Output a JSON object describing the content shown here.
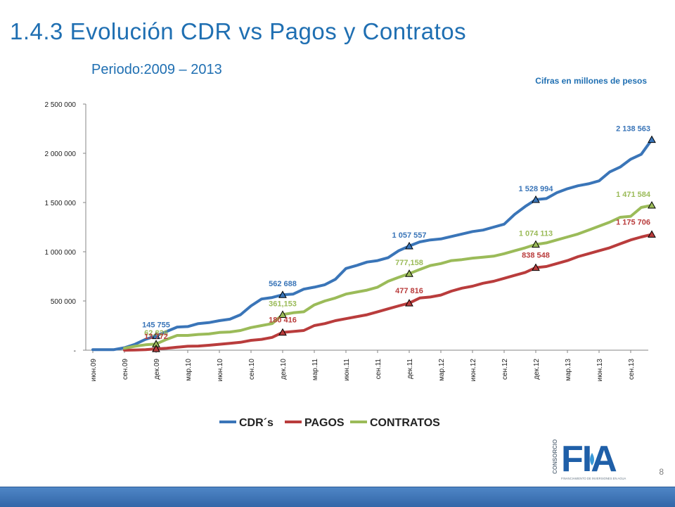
{
  "title": "1.4.3 Evolución CDR vs Pagos y Contratos",
  "subtitle": "Periodo:2009 – 2013",
  "units_note": "Cifras en millones de pesos",
  "page_number": "8",
  "logo": {
    "word": "FIA",
    "side_text": "CONSORCIO",
    "tagline": "FINANCIAMIENTO DE INVERSIONES EN AGUA"
  },
  "chart_data": {
    "type": "line",
    "ylim": [
      0,
      2500000
    ],
    "yticks": [
      {
        "v": 0,
        "label": "-"
      },
      {
        "v": 500000,
        "label": "500 000"
      },
      {
        "v": 1000000,
        "label": "1 000 000"
      },
      {
        "v": 1500000,
        "label": "1 500 000"
      },
      {
        "v": 2000000,
        "label": "2 000 000"
      },
      {
        "v": 2500000,
        "label": "2 500 000"
      }
    ],
    "xticks": [
      {
        "i": 0,
        "label": "июн.09"
      },
      {
        "i": 3,
        "label": "сен.09"
      },
      {
        "i": 6,
        "label": "дек.09"
      },
      {
        "i": 9,
        "label": "мар.10"
      },
      {
        "i": 12,
        "label": "июн.10"
      },
      {
        "i": 15,
        "label": "сен.10"
      },
      {
        "i": 18,
        "label": "дек.10"
      },
      {
        "i": 21,
        "label": "мар.11"
      },
      {
        "i": 24,
        "label": "июн.11"
      },
      {
        "i": 27,
        "label": "сен.11"
      },
      {
        "i": 30,
        "label": "дек.11"
      },
      {
        "i": 33,
        "label": "мар.12"
      },
      {
        "i": 36,
        "label": "июн.12"
      },
      {
        "i": 39,
        "label": "сен.12"
      },
      {
        "i": 42,
        "label": "дек.12"
      },
      {
        "i": 45,
        "label": "мар.13"
      },
      {
        "i": 48,
        "label": "июн.13"
      },
      {
        "i": 51,
        "label": "сен.13"
      }
    ],
    "legend_position": "bottom",
    "series": [
      {
        "name": "CDR´s",
        "color": "#3a75b8",
        "values": [
          5000,
          5000,
          6000,
          25000,
          60000,
          110000,
          145755,
          190000,
          235000,
          240000,
          270000,
          280000,
          300000,
          315000,
          360000,
          450000,
          520000,
          535000,
          562688,
          570000,
          620000,
          640000,
          665000,
          720000,
          830000,
          860000,
          895000,
          910000,
          940000,
          1010000,
          1057557,
          1100000,
          1120000,
          1130000,
          1155000,
          1180000,
          1205000,
          1220000,
          1250000,
          1280000,
          1380000,
          1460000,
          1528994,
          1540000,
          1600000,
          1640000,
          1670000,
          1690000,
          1720000,
          1810000,
          1860000,
          1940000,
          1990000,
          2138563
        ]
      },
      {
        "name": "PAGOS",
        "color": "#b93c3c",
        "values": [
          null,
          null,
          null,
          0,
          2000,
          5000,
          13772,
          20000,
          30000,
          40000,
          42000,
          50000,
          60000,
          70000,
          80000,
          100000,
          110000,
          130000,
          180416,
          190000,
          200000,
          250000,
          270000,
          300000,
          320000,
          340000,
          360000,
          390000,
          420000,
          450000,
          477816,
          530000,
          540000,
          560000,
          600000,
          630000,
          650000,
          680000,
          700000,
          730000,
          760000,
          790000,
          838548,
          850000,
          880000,
          910000,
          950000,
          980000,
          1010000,
          1040000,
          1080000,
          1120000,
          1150000,
          1175706
        ]
      },
      {
        "name": "CONTRATOS",
        "color": "#9bbb59",
        "values": [
          null,
          null,
          null,
          20000,
          40000,
          55000,
          62826,
          110000,
          150000,
          150000,
          160000,
          165000,
          180000,
          185000,
          200000,
          230000,
          250000,
          270000,
          361153,
          380000,
          390000,
          460000,
          500000,
          530000,
          570000,
          590000,
          610000,
          640000,
          700000,
          740000,
          777158,
          820000,
          860000,
          880000,
          910000,
          920000,
          935000,
          945000,
          955000,
          980000,
          1010000,
          1040000,
          1074113,
          1090000,
          1120000,
          1150000,
          1180000,
          1220000,
          1260000,
          1300000,
          1350000,
          1360000,
          1450000,
          1471584
        ]
      }
    ],
    "data_labels": [
      {
        "series": 0,
        "i": 6,
        "text": "145 755"
      },
      {
        "series": 2,
        "i": 6,
        "text": "62,826"
      },
      {
        "series": 1,
        "i": 6,
        "text": "13 772"
      },
      {
        "series": 0,
        "i": 18,
        "text": "562 688"
      },
      {
        "series": 2,
        "i": 18,
        "text": "361,153"
      },
      {
        "series": 1,
        "i": 18,
        "text": "180 416"
      },
      {
        "series": 0,
        "i": 30,
        "text": "1 057 557"
      },
      {
        "series": 2,
        "i": 30,
        "text": "777,158"
      },
      {
        "series": 1,
        "i": 30,
        "text": "477 816"
      },
      {
        "series": 0,
        "i": 42,
        "text": "1 528 994"
      },
      {
        "series": 2,
        "i": 42,
        "text": "1 074 113"
      },
      {
        "series": 1,
        "i": 42,
        "text": "838 548"
      },
      {
        "series": 0,
        "i": 53,
        "text": "2 138 563"
      },
      {
        "series": 2,
        "i": 53,
        "text": "1 471 584"
      },
      {
        "series": 1,
        "i": 53,
        "text": "1 175 706"
      }
    ]
  }
}
